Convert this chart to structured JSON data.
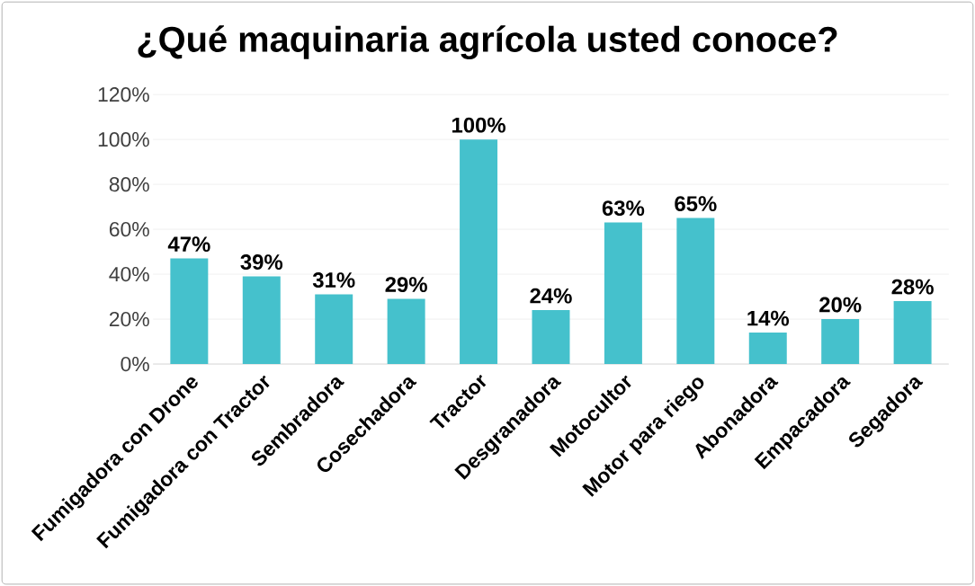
{
  "chart_data": {
    "type": "bar",
    "title": "¿Qué maquinaria agrícola usted conoce?",
    "categories": [
      "Fumigadora con Drone",
      "Fumigadora con Tractor",
      "Sembradora",
      "Cosechadora",
      "Tractor",
      "Desgranadora",
      "Motocultor",
      "Motor para riego",
      "Abonadora",
      "Empacadora",
      "Segadora"
    ],
    "values": [
      47,
      39,
      31,
      29,
      100,
      24,
      63,
      65,
      14,
      20,
      28
    ],
    "value_labels": [
      "47%",
      "39%",
      "31%",
      "29%",
      "100%",
      "24%",
      "63%",
      "65%",
      "14%",
      "20%",
      "28%"
    ],
    "color": "#45c1cc",
    "ylim": [
      0,
      120
    ],
    "yticks": [
      {
        "value": 0,
        "label": "0%"
      },
      {
        "value": 20,
        "label": "20%"
      },
      {
        "value": 40,
        "label": "40%"
      },
      {
        "value": 60,
        "label": "60%"
      },
      {
        "value": 80,
        "label": "80%"
      },
      {
        "value": 100,
        "label": "100%"
      },
      {
        "value": 120,
        "label": "120%"
      }
    ],
    "grid": "y"
  }
}
